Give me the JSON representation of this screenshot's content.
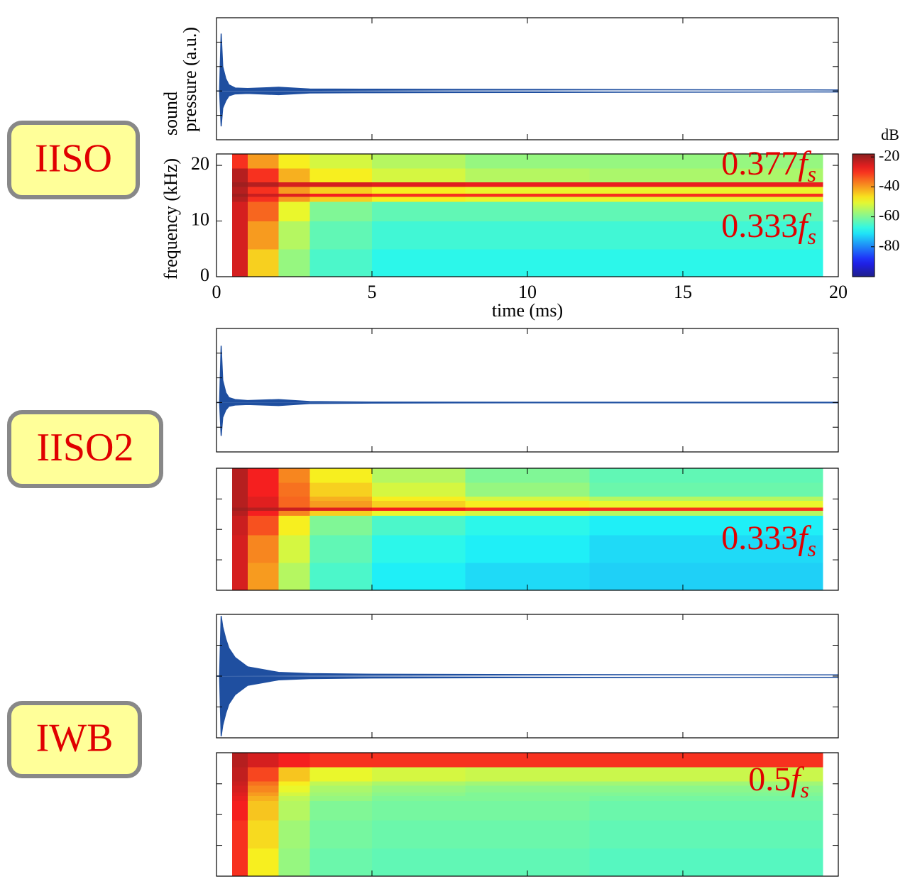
{
  "panel_labels": [
    "IISO",
    "IISO2",
    "IWB"
  ],
  "chart_data": [
    {
      "type": "area",
      "ylabel": [
        "sound",
        "pressure (a.u.)"
      ],
      "x": [
        0,
        0.1,
        0.15,
        0.2,
        0.3,
        0.4,
        0.6,
        1,
        2,
        3,
        5,
        10,
        20
      ],
      "series": [
        {
          "color": "#1f4fa0",
          "values": [
            0,
            0,
            2.35,
            1.0,
            0.5,
            0.25,
            0.12,
            0.1,
            0.15,
            0.08,
            0.07,
            0.06,
            0.04
          ]
        },
        {
          "color": "#1f4fa0",
          "values": [
            0,
            0,
            -1.45,
            -0.7,
            -0.4,
            -0.2,
            -0.12,
            -0.1,
            -0.15,
            -0.08,
            -0.07,
            -0.06,
            -0.04
          ]
        }
      ],
      "xlim": [
        0,
        20
      ],
      "xticks": [
        0,
        5,
        10,
        15,
        20
      ],
      "ylim": [
        -2,
        3
      ],
      "yticks": [
        -1,
        0,
        1,
        2
      ],
      "tick_labels": false
    },
    {
      "type": "heatmap",
      "ylabel": [
        "frequency (kHz)"
      ],
      "xlabel": "time (ms)",
      "x_edges": [
        0.5,
        1,
        2,
        3,
        5,
        8,
        12,
        16,
        19.5
      ],
      "y_edges": [
        0,
        5,
        10,
        13.5,
        14.4,
        15.0,
        16.2,
        17.0,
        19.5,
        22.05
      ],
      "z": [
        [
          -25,
          -45,
          -58,
          -65,
          -68,
          -68,
          -68,
          -68
        ],
        [
          -25,
          -40,
          -55,
          -63,
          -66,
          -66,
          -66,
          -66
        ],
        [
          -25,
          -35,
          -50,
          -60,
          -63,
          -63,
          -63,
          -63
        ],
        [
          -22,
          -30,
          -40,
          -45,
          -48,
          -50,
          -50,
          -50
        ],
        [
          -20,
          -24,
          -26,
          -28,
          -30,
          -30,
          -30,
          -30
        ],
        [
          -22,
          -30,
          -40,
          -45,
          -48,
          -50,
          -50,
          -50
        ],
        [
          -20,
          -22,
          -25,
          -25,
          -26,
          -27,
          -27,
          -27
        ],
        [
          -22,
          -30,
          -42,
          -48,
          -52,
          -55,
          -56,
          -56
        ],
        [
          -30,
          -40,
          -48,
          -52,
          -55,
          -58,
          -58,
          -58
        ]
      ],
      "colormap": "jet",
      "clim": [
        -100,
        -18
      ],
      "colorbar": {
        "label": "dB",
        "ticks": [
          -20,
          -40,
          -60,
          -80
        ]
      },
      "xlim": [
        0,
        20
      ],
      "xticks": [
        0,
        5,
        10,
        15,
        20
      ],
      "ylim": [
        0,
        22.05
      ],
      "yticks": [
        0,
        10,
        20
      ],
      "tick_labels": true,
      "annotations": [
        {
          "coef": "0.377",
          "var": "f",
          "sub": "s"
        },
        {
          "coef": "0.333",
          "var": "f",
          "sub": "s"
        }
      ]
    },
    {
      "type": "area",
      "x": [
        0,
        0.1,
        0.15,
        0.2,
        0.3,
        0.4,
        0.6,
        1,
        2,
        3,
        5,
        10,
        20
      ],
      "series": [
        {
          "color": "#1f4fa0",
          "values": [
            0,
            0,
            2.3,
            0.9,
            0.4,
            0.2,
            0.12,
            0.08,
            0.12,
            0.04,
            0.02,
            0.01,
            0.01
          ]
        },
        {
          "color": "#1f4fa0",
          "values": [
            0,
            0,
            -1.35,
            -0.6,
            -0.3,
            -0.15,
            -0.1,
            -0.08,
            -0.12,
            -0.04,
            -0.02,
            -0.01,
            -0.01
          ]
        }
      ],
      "xlim": [
        0,
        20
      ],
      "xticks": [
        0,
        5,
        10,
        15,
        20
      ],
      "ylim": [
        -2,
        3
      ],
      "yticks": [
        -1,
        0,
        1,
        2
      ],
      "tick_labels": false
    },
    {
      "type": "heatmap",
      "x_edges": [
        0.5,
        1,
        2,
        3,
        5,
        8,
        12,
        16,
        19.5
      ],
      "y_edges": [
        0,
        5,
        10,
        13.5,
        14.4,
        15.0,
        16.2,
        17.0,
        19.5,
        22.05
      ],
      "z": [
        [
          -25,
          -40,
          -55,
          -65,
          -70,
          -72,
          -73,
          -73
        ],
        [
          -25,
          -38,
          -52,
          -63,
          -68,
          -70,
          -72,
          -72
        ],
        [
          -24,
          -33,
          -48,
          -60,
          -65,
          -68,
          -70,
          -70
        ],
        [
          -22,
          -28,
          -38,
          -45,
          -50,
          -52,
          -55,
          -55
        ],
        [
          -20,
          -22,
          -24,
          -26,
          -28,
          -30,
          -30,
          -30
        ],
        [
          -22,
          -26,
          -35,
          -40,
          -45,
          -48,
          -50,
          -50
        ],
        [
          -22,
          -26,
          -35,
          -42,
          -48,
          -52,
          -55,
          -55
        ],
        [
          -22,
          -28,
          -36,
          -45,
          -52,
          -58,
          -62,
          -62
        ],
        [
          -22,
          -28,
          -38,
          -48,
          -55,
          -60,
          -63,
          -63
        ]
      ],
      "colormap": "jet",
      "clim": [
        -100,
        -18
      ],
      "xlim": [
        0,
        20
      ],
      "xticks": [
        0,
        5,
        10,
        15,
        20
      ],
      "ylim": [
        0,
        22.05
      ],
      "yticks": [
        5.5,
        11,
        16.5
      ],
      "tick_labels": false,
      "annotations": [
        {
          "coef": "0.333",
          "var": "f",
          "sub": "s"
        }
      ]
    },
    {
      "type": "area",
      "x": [
        0,
        0.1,
        0.15,
        0.2,
        0.3,
        0.4,
        0.6,
        1,
        2,
        3,
        5,
        10,
        20
      ],
      "series": [
        {
          "color": "#1f4fa0",
          "values": [
            0,
            0,
            1.95,
            1.6,
            1.2,
            0.9,
            0.6,
            0.3,
            0.12,
            0.08,
            0.06,
            0.05,
            0.04
          ]
        },
        {
          "color": "#1f4fa0",
          "values": [
            0,
            0,
            -1.95,
            -1.6,
            -1.2,
            -0.9,
            -0.6,
            -0.3,
            -0.12,
            -0.08,
            -0.06,
            -0.05,
            -0.04
          ]
        }
      ],
      "xlim": [
        0,
        20
      ],
      "xticks": [
        0,
        5,
        10,
        15,
        20
      ],
      "ylim": [
        -2,
        2
      ],
      "yticks": [
        -1,
        0,
        1
      ],
      "tick_labels": false
    },
    {
      "type": "heatmap",
      "x_edges": [
        0.5,
        1,
        2,
        3,
        5,
        8,
        12,
        16,
        19.5
      ],
      "y_edges": [
        0,
        5,
        10,
        13.5,
        14.4,
        15.0,
        16.2,
        17.0,
        19.5,
        22.05
      ],
      "z": [
        [
          -30,
          -48,
          -58,
          -62,
          -63,
          -63,
          -64,
          -64
        ],
        [
          -30,
          -46,
          -57,
          -61,
          -62,
          -62,
          -63,
          -63
        ],
        [
          -28,
          -44,
          -55,
          -60,
          -61,
          -61,
          -62,
          -62
        ],
        [
          -27,
          -42,
          -54,
          -58,
          -60,
          -60,
          -61,
          -61
        ],
        [
          -26,
          -40,
          -52,
          -57,
          -59,
          -60,
          -60,
          -60
        ],
        [
          -25,
          -38,
          -50,
          -56,
          -58,
          -59,
          -59,
          -59
        ],
        [
          -24,
          -36,
          -48,
          -54,
          -56,
          -57,
          -57,
          -57
        ],
        [
          -23,
          -32,
          -44,
          -50,
          -52,
          -53,
          -53,
          -53
        ],
        [
          -22,
          -25,
          -28,
          -30,
          -30,
          -30,
          -30,
          -30
        ]
      ],
      "colormap": "jet",
      "clim": [
        -100,
        -18
      ],
      "xlim": [
        0,
        20
      ],
      "xticks": [
        0,
        5,
        10,
        15,
        20
      ],
      "ylim": [
        0,
        22.05
      ],
      "yticks": [
        5.5,
        11,
        16.5
      ],
      "tick_labels": false,
      "annotations": [
        {
          "coef": "0.5",
          "var": "f",
          "sub": "s"
        }
      ]
    }
  ]
}
